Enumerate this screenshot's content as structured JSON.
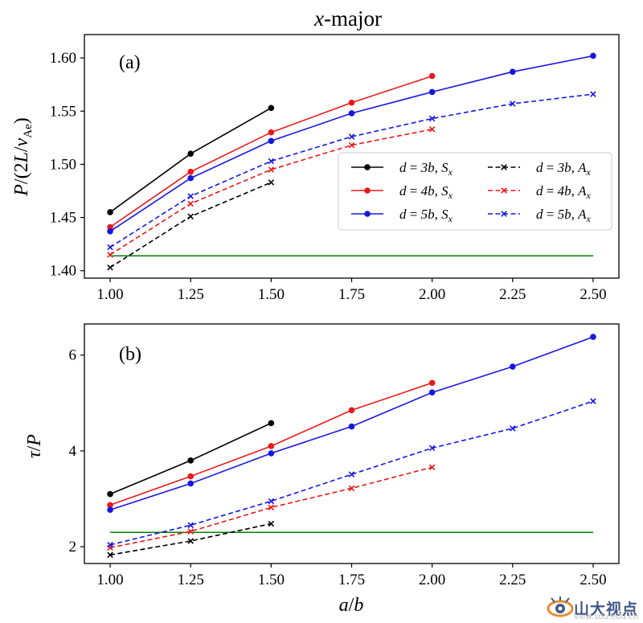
{
  "figure": {
    "title_prefix": "x",
    "title_suffix": "-major"
  },
  "chart_data": [
    {
      "type": "line",
      "panel_label": "(a)",
      "ylabel": "P/(2L/v_Ae)",
      "xlabel": "",
      "xlim": [
        0.92,
        2.58
      ],
      "ylim": [
        1.393,
        1.622
      ],
      "xticks": [
        "1.00",
        "1.25",
        "1.50",
        "1.75",
        "2.00",
        "2.25",
        "2.50"
      ],
      "yticks": [
        "1.40",
        "1.45",
        "1.50",
        "1.55",
        "1.60"
      ],
      "grid": false,
      "legend_position": "center-right",
      "reference_line": {
        "y": 1.414,
        "color": "#008000"
      },
      "series": [
        {
          "name": "d = 3b, S_x",
          "color": "#000000",
          "style": "solid",
          "marker": "circle",
          "x": [
            1.0,
            1.25,
            1.5
          ],
          "values": [
            1.455,
            1.51,
            1.553
          ]
        },
        {
          "name": "d = 4b, S_x",
          "color": "#e8181b",
          "style": "solid",
          "marker": "circle",
          "x": [
            1.0,
            1.25,
            1.5,
            1.75,
            2.0
          ],
          "values": [
            1.441,
            1.493,
            1.53,
            1.558,
            1.583
          ]
        },
        {
          "name": "d = 5b, S_x",
          "color": "#1616e0",
          "style": "solid",
          "marker": "circle",
          "x": [
            1.0,
            1.25,
            1.5,
            1.75,
            2.0,
            2.25,
            2.5
          ],
          "values": [
            1.437,
            1.487,
            1.522,
            1.548,
            1.568,
            1.587,
            1.602
          ]
        },
        {
          "name": "d = 3b, A_x",
          "color": "#000000",
          "style": "dashed",
          "marker": "x",
          "x": [
            1.0,
            1.25,
            1.5
          ],
          "values": [
            1.403,
            1.451,
            1.483
          ]
        },
        {
          "name": "d = 4b, A_x",
          "color": "#e8181b",
          "style": "dashed",
          "marker": "x",
          "x": [
            1.0,
            1.25,
            1.5,
            1.75,
            2.0
          ],
          "values": [
            1.415,
            1.463,
            1.495,
            1.518,
            1.533
          ]
        },
        {
          "name": "d = 5b, A_x",
          "color": "#1616e0",
          "style": "dashed",
          "marker": "x",
          "x": [
            1.0,
            1.25,
            1.5,
            1.75,
            2.0,
            2.25,
            2.5
          ],
          "values": [
            1.422,
            1.47,
            1.503,
            1.526,
            1.543,
            1.557,
            1.566
          ]
        }
      ]
    },
    {
      "type": "line",
      "panel_label": "(b)",
      "ylabel": "τ/P",
      "xlabel": "a/b",
      "xlim": [
        0.92,
        2.58
      ],
      "ylim": [
        1.65,
        6.65
      ],
      "xticks": [
        "1.00",
        "1.25",
        "1.50",
        "1.75",
        "2.00",
        "2.25",
        "2.50"
      ],
      "yticks": [
        "2",
        "4",
        "6"
      ],
      "grid": false,
      "reference_line": {
        "y": 2.3,
        "color": "#008000"
      },
      "series": [
        {
          "name": "d = 3b, S_x",
          "color": "#000000",
          "style": "solid",
          "marker": "circle",
          "x": [
            1.0,
            1.25,
            1.5
          ],
          "values": [
            3.1,
            3.8,
            4.58
          ]
        },
        {
          "name": "d = 4b, S_x",
          "color": "#e8181b",
          "style": "solid",
          "marker": "circle",
          "x": [
            1.0,
            1.25,
            1.5,
            1.75,
            2.0
          ],
          "values": [
            2.87,
            3.47,
            4.1,
            4.85,
            5.42
          ]
        },
        {
          "name": "d = 5b, S_x",
          "color": "#1616e0",
          "style": "solid",
          "marker": "circle",
          "x": [
            1.0,
            1.25,
            1.5,
            1.75,
            2.0,
            2.25,
            2.5
          ],
          "values": [
            2.77,
            3.32,
            3.95,
            4.51,
            5.22,
            5.76,
            6.38
          ]
        },
        {
          "name": "d = 3b, A_x",
          "color": "#000000",
          "style": "dashed",
          "marker": "x",
          "x": [
            1.0,
            1.25,
            1.5
          ],
          "values": [
            1.83,
            2.12,
            2.48
          ]
        },
        {
          "name": "d = 4b, A_x",
          "color": "#e8181b",
          "style": "dashed",
          "marker": "x",
          "x": [
            1.0,
            1.25,
            1.5,
            1.75,
            2.0
          ],
          "values": [
            1.98,
            2.32,
            2.82,
            3.22,
            3.66
          ]
        },
        {
          "name": "d = 5b, A_x",
          "color": "#1616e0",
          "style": "dashed",
          "marker": "x",
          "x": [
            1.0,
            1.25,
            1.5,
            1.75,
            2.0,
            2.25,
            2.5
          ],
          "values": [
            2.04,
            2.45,
            2.95,
            3.51,
            4.06,
            4.47,
            5.04
          ]
        }
      ]
    }
  ],
  "legend": [
    {
      "d": "d",
      "eq": " = ",
      "val": "3b",
      "sep": ", ",
      "sym": "S",
      "sub": "x",
      "color": "#000000",
      "style": "solid",
      "marker": "circle"
    },
    {
      "d": "d",
      "eq": " = ",
      "val": "3b",
      "sep": ", ",
      "sym": "A",
      "sub": "x",
      "color": "#000000",
      "style": "dashed",
      "marker": "x"
    },
    {
      "d": "d",
      "eq": " = ",
      "val": "4b",
      "sep": ", ",
      "sym": "S",
      "sub": "x",
      "color": "#e8181b",
      "style": "solid",
      "marker": "circle"
    },
    {
      "d": "d",
      "eq": " = ",
      "val": "4b",
      "sep": ", ",
      "sym": "A",
      "sub": "x",
      "color": "#e8181b",
      "style": "dashed",
      "marker": "x"
    },
    {
      "d": "d",
      "eq": " = ",
      "val": "5b",
      "sep": ", ",
      "sym": "S",
      "sub": "x",
      "color": "#1616e0",
      "style": "solid",
      "marker": "circle"
    },
    {
      "d": "d",
      "eq": " = ",
      "val": "5b",
      "sep": ", ",
      "sym": "A",
      "sub": "x",
      "color": "#1616e0",
      "style": "dashed",
      "marker": "x"
    }
  ],
  "ylabel_a_parts": {
    "p": "P",
    "mid": "/(2",
    "l": "L",
    "slash": "/",
    "v": "v",
    "sub": "Ae",
    "close": ")"
  },
  "ylabel_b_parts": {
    "tau": "τ",
    "slash": "/",
    "p": "P"
  },
  "xlabel_parts": {
    "a": "a",
    "slash": "/",
    "b": "b"
  },
  "watermark": {
    "text": "山大视点",
    "url": "view.sdu.edu.cn"
  }
}
